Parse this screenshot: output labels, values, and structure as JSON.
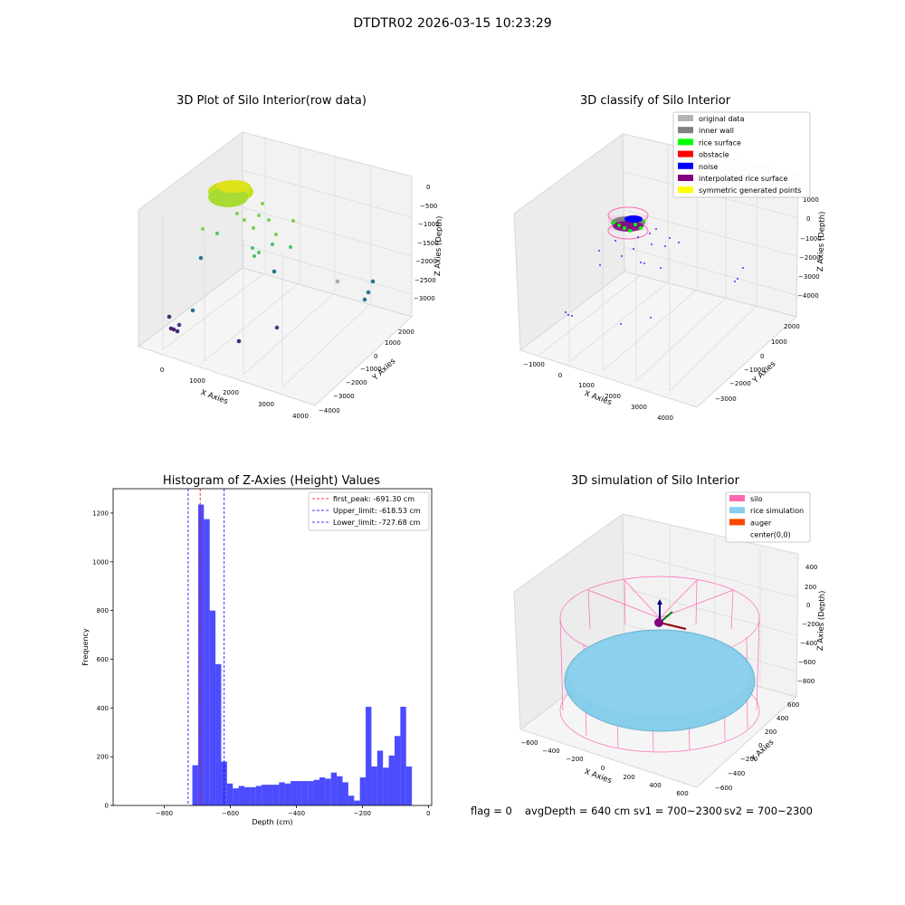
{
  "figure": {
    "suptitle": "DTDTR02 2026-03-15 10:23:29"
  },
  "panels": {
    "raw": {
      "title": "3D Plot of Silo Interior(row data)",
      "xlabel": "X Axies",
      "ylabel": "Y Axies",
      "zlabel": "Z Axies (Depth)",
      "xticks": [
        "0",
        "1000",
        "2000",
        "3000",
        "4000"
      ],
      "yticks": [
        "2000",
        "1000",
        "0",
        "−1000",
        "−2000",
        "−3000",
        "−4000"
      ],
      "zticks": [
        "0",
        "−500",
        "−1000",
        "−1500",
        "−2000",
        "−2500",
        "−3000"
      ]
    },
    "classify": {
      "title": "3D classify of Silo Interior",
      "xlabel": "X Axies",
      "ylabel": "Y Axies",
      "zlabel": "Z Axies (Depth)",
      "xticks": [
        "−1000",
        "0",
        "1000",
        "2000",
        "3000",
        "4000"
      ],
      "yticks": [
        "2000",
        "1000",
        "0",
        "−1000",
        "−2000",
        "−3000"
      ],
      "zticks": [
        "1000",
        "0",
        "−1000",
        "−2000",
        "−3000",
        "−4000"
      ],
      "legend": [
        {
          "label": "original data",
          "color": "#b3b3b3"
        },
        {
          "label": "inner wall",
          "color": "#808080"
        },
        {
          "label": "rice surface",
          "color": "#00ff00"
        },
        {
          "label": "obstacle",
          "color": "#ff0000"
        },
        {
          "label": "noise",
          "color": "#0000ff"
        },
        {
          "label": "interpolated rice surface",
          "color": "#800080"
        },
        {
          "label": "symmetric generated points",
          "color": "#ffff00"
        }
      ]
    },
    "simulation": {
      "title": "3D simulation of Silo Interior",
      "xlabel": "X Axies",
      "ylabel": "Y Axies",
      "zlabel": "Z Axies (Depth)",
      "xticks": [
        "−600",
        "−400",
        "−200",
        "0",
        "200",
        "400",
        "600"
      ],
      "yticks": [
        "600",
        "400",
        "200",
        "0",
        "−200",
        "−400",
        "−600"
      ],
      "zticks": [
        "400",
        "200",
        "0",
        "−200",
        "−400",
        "−600",
        "−800"
      ],
      "legend": [
        {
          "label": "silo",
          "color": "#ff69b4"
        },
        {
          "label": "rice simulation",
          "color": "#87ceeb"
        },
        {
          "label": "auger",
          "color": "#ff4500"
        },
        {
          "label": "center(0,0)",
          "color": "#ffffff"
        }
      ]
    }
  },
  "chart_data": {
    "type": "bar",
    "title": "Histogram of Z-Axies (Height) Values",
    "xlabel": "Depth (cm)",
    "ylabel": "Frequency",
    "xlim": [
      -955,
      10
    ],
    "ylim": [
      0,
      1300
    ],
    "xticks": [
      -800,
      -600,
      -400,
      -200,
      0
    ],
    "xtick_labels": [
      "−800",
      "−600",
      "−400",
      "−200",
      "0"
    ],
    "yticks": [
      0,
      200,
      400,
      600,
      800,
      1000,
      1200
    ],
    "bar_color": "#0000ff",
    "bin_width": 17.5,
    "bins": [
      [
        -715,
        165
      ],
      [
        -697.5,
        1235
      ],
      [
        -680,
        1175
      ],
      [
        -662.5,
        800
      ],
      [
        -645,
        580
      ],
      [
        -627.5,
        180
      ],
      [
        -610,
        90
      ],
      [
        -592.5,
        70
      ],
      [
        -575,
        80
      ],
      [
        -557.5,
        75
      ],
      [
        -540,
        75
      ],
      [
        -522.5,
        80
      ],
      [
        -505,
        85
      ],
      [
        -487.5,
        85
      ],
      [
        -470,
        85
      ],
      [
        -452.5,
        95
      ],
      [
        -435,
        90
      ],
      [
        -417.5,
        100
      ],
      [
        -400,
        100
      ],
      [
        -382.5,
        100
      ],
      [
        -365,
        100
      ],
      [
        -347.5,
        105
      ],
      [
        -330,
        115
      ],
      [
        -312.5,
        110
      ],
      [
        -295,
        135
      ],
      [
        -277.5,
        120
      ],
      [
        -260,
        95
      ],
      [
        -242.5,
        40
      ],
      [
        -225,
        20
      ],
      [
        -207.5,
        115
      ],
      [
        -190,
        405
      ],
      [
        -172.5,
        160
      ],
      [
        -155,
        225
      ],
      [
        -137.5,
        155
      ],
      [
        -120,
        205
      ],
      [
        -102.5,
        285
      ],
      [
        -85,
        405
      ],
      [
        -67.5,
        160
      ]
    ],
    "vlines": [
      {
        "name": "first_peak: -691.30 cm",
        "x": -691.3,
        "color": "#ff0000"
      },
      {
        "name": "Upper_limit: -618.53 cm",
        "x": -618.53,
        "color": "#0000ff"
      },
      {
        "name": "Lower_limit: -727.68 cm",
        "x": -727.68,
        "color": "#0000ff"
      }
    ]
  },
  "footer": {
    "flag": "flag = 0",
    "avg_depth": "avgDepth = 640 cm",
    "sv1": "sv1 = 700~2300",
    "sv2": "sv2 = 700~2300"
  }
}
